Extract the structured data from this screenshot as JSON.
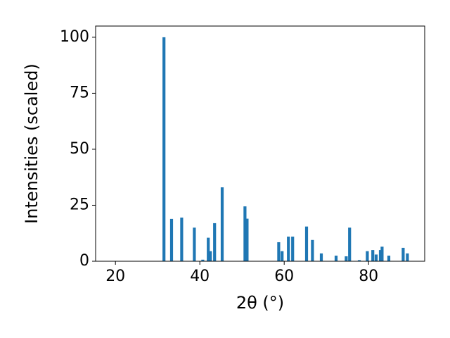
{
  "chart_data": {
    "type": "bar",
    "x_label": "2θ (°)",
    "y_label": "Intensities (scaled)",
    "color": "#1f77b4",
    "x": [
      31.5,
      33.3,
      35.7,
      38.7,
      40.7,
      42.0,
      42.5,
      43.5,
      45.3,
      50.7,
      51.2,
      58.7,
      59.5,
      61.0,
      62.0,
      65.3,
      66.7,
      68.8,
      72.3,
      74.7,
      75.5,
      77.8,
      79.7,
      81.0,
      81.8,
      82.8,
      83.2,
      84.8,
      88.2,
      89.2
    ],
    "values": [
      100,
      18.9,
      19.5,
      15,
      0.7,
      10.5,
      4.5,
      17,
      33,
      24.5,
      19,
      8.5,
      4.5,
      11,
      11,
      15.5,
      9.5,
      3.5,
      2.5,
      2.2,
      15,
      0.5,
      4.5,
      5,
      3,
      5,
      6.5,
      2.5,
      6,
      3.5
    ],
    "xlim": [
      15.3,
      93.3
    ],
    "xticks": [
      20,
      40,
      60,
      80
    ],
    "ylim": [
      0,
      105
    ],
    "yticks": [
      0,
      25,
      50,
      75,
      100
    ]
  }
}
